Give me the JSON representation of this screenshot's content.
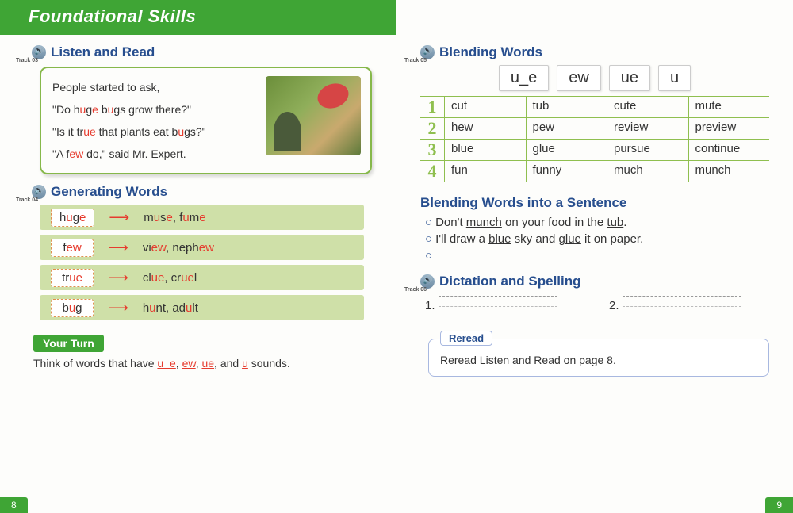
{
  "header": {
    "title": "Foundational Skills"
  },
  "left": {
    "listen": {
      "title": "Listen and Read",
      "track": "Track 03",
      "lines": [
        [
          {
            "t": "People started to ask,"
          }
        ],
        [
          {
            "t": "\"Do h"
          },
          {
            "t": "u",
            "hl": true
          },
          {
            "t": "g"
          },
          {
            "t": "e",
            "hl": true
          },
          {
            "t": " b"
          },
          {
            "t": "u",
            "hl": true
          },
          {
            "t": "gs grow there?\""
          }
        ],
        [
          {
            "t": "\"Is it tr"
          },
          {
            "t": "ue",
            "hl": true
          },
          {
            "t": " that plants eat b"
          },
          {
            "t": "u",
            "hl": true
          },
          {
            "t": "gs?\""
          }
        ],
        [
          {
            "t": "\"A f"
          },
          {
            "t": "ew",
            "hl": true
          },
          {
            "t": " do,\" said Mr. Expert."
          }
        ]
      ]
    },
    "generating": {
      "title": "Generating Words",
      "track": "Track 04",
      "rows": [
        {
          "word": [
            {
              "t": "h"
            },
            {
              "t": "u",
              "hl": true
            },
            {
              "t": "g"
            },
            {
              "t": "e",
              "hl": true
            }
          ],
          "out": [
            {
              "t": "m"
            },
            {
              "t": "u",
              "hl": true
            },
            {
              "t": "s"
            },
            {
              "t": "e",
              "hl": true
            },
            {
              "t": ", f"
            },
            {
              "t": "u",
              "hl": true
            },
            {
              "t": "m"
            },
            {
              "t": "e",
              "hl": true
            }
          ]
        },
        {
          "word": [
            {
              "t": "f"
            },
            {
              "t": "ew",
              "hl": true
            }
          ],
          "out": [
            {
              "t": "vi"
            },
            {
              "t": "ew",
              "hl": true
            },
            {
              "t": ", neph"
            },
            {
              "t": "ew",
              "hl": true
            }
          ]
        },
        {
          "word": [
            {
              "t": "tr"
            },
            {
              "t": "ue",
              "hl": true
            }
          ],
          "out": [
            {
              "t": "cl"
            },
            {
              "t": "ue",
              "hl": true
            },
            {
              "t": ", cr"
            },
            {
              "t": "ue",
              "hl": true
            },
            {
              "t": "l"
            }
          ]
        },
        {
          "word": [
            {
              "t": "b"
            },
            {
              "t": "u",
              "hl": true
            },
            {
              "t": "g"
            }
          ],
          "out": [
            {
              "t": "h"
            },
            {
              "t": "u",
              "hl": true
            },
            {
              "t": "nt, ad"
            },
            {
              "t": "u",
              "hl": true
            },
            {
              "t": "lt"
            }
          ]
        }
      ]
    },
    "yourturn": {
      "label": "Your Turn",
      "text_pre": "Think of words that have ",
      "sounds": [
        "u_e",
        "ew",
        "ue",
        "u"
      ],
      "text_post": " sounds."
    },
    "pagenum": "8"
  },
  "right": {
    "blending": {
      "title": "Blending Words",
      "track": "Track 05",
      "headers": [
        "u_e",
        "ew",
        "ue",
        "u"
      ],
      "rows": [
        {
          "n": "1",
          "c": [
            "cut",
            "tub",
            "cute",
            "mute"
          ]
        },
        {
          "n": "2",
          "c": [
            "hew",
            "pew",
            "review",
            "preview"
          ]
        },
        {
          "n": "3",
          "c": [
            "blue",
            "glue",
            "pursue",
            "continue"
          ]
        },
        {
          "n": "4",
          "c": [
            "fun",
            "funny",
            "much",
            "munch"
          ]
        }
      ]
    },
    "sentence": {
      "title": "Blending Words into a Sentence",
      "items": [
        [
          {
            "t": "Don't "
          },
          {
            "t": "munch",
            "ul": true
          },
          {
            "t": " on your food in the "
          },
          {
            "t": "tub",
            "ul": true
          },
          {
            "t": "."
          }
        ],
        [
          {
            "t": "I'll draw a "
          },
          {
            "t": "blue",
            "ul": true
          },
          {
            "t": " sky and "
          },
          {
            "t": "glue",
            "ul": true
          },
          {
            "t": " it on paper."
          }
        ]
      ]
    },
    "dictation": {
      "title": "Dictation and Spelling",
      "track": "Track 06",
      "items": [
        "1.",
        "2."
      ]
    },
    "reread": {
      "tab": "Reread",
      "text": "Reread Listen and Read on page 8."
    },
    "pagenum": "9"
  }
}
